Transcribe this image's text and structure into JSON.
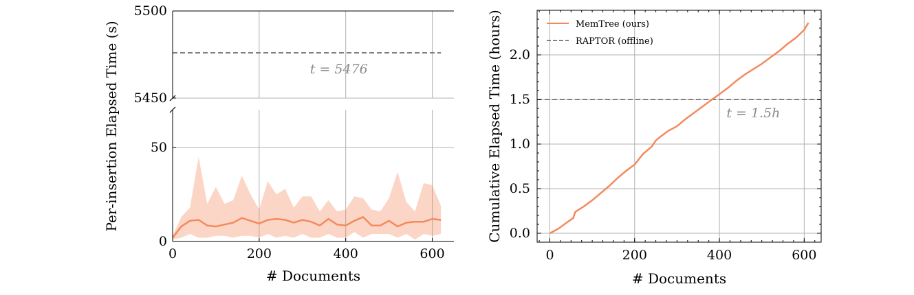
{
  "chart_data": [
    {
      "type": "line",
      "panel": "left",
      "xlabel": "# Documents",
      "ylabel": "Per-insertion Elapsed Time (s)",
      "xlim": [
        0,
        650
      ],
      "ylim_upper": [
        5450,
        5500
      ],
      "ylim_lower": [
        0,
        70
      ],
      "xticks": [
        "0",
        "200",
        "400",
        "600"
      ],
      "yticks_upper": [
        "5450",
        "5500"
      ],
      "yticks_lower": [
        "0",
        "50"
      ],
      "grid": true,
      "broken_axis": true,
      "reference_line": {
        "value": 5476,
        "label": "t = 5476",
        "style": "dashed",
        "color": "#808080"
      },
      "series": [
        {
          "color": "#f4895c",
          "x": [
            0,
            20,
            40,
            60,
            80,
            100,
            120,
            140,
            160,
            180,
            200,
            220,
            240,
            260,
            280,
            300,
            320,
            340,
            360,
            380,
            400,
            420,
            440,
            460,
            480,
            500,
            520,
            540,
            560,
            580,
            600,
            620
          ],
          "y": [
            2,
            8,
            11,
            11.5,
            8.5,
            8,
            9,
            10,
            12.5,
            11,
            9.5,
            11.5,
            12,
            11.5,
            10,
            11.5,
            10.5,
            8.5,
            12,
            9,
            8.5,
            11,
            13,
            8.5,
            8.5,
            11,
            8,
            10,
            10.5,
            10.5,
            12,
            11.5
          ],
          "upper": [
            3,
            13,
            18,
            45,
            20,
            29,
            20,
            22,
            35,
            25,
            17,
            32,
            25,
            28,
            18,
            24,
            24,
            16,
            22,
            16,
            17,
            24,
            23,
            17,
            16,
            23,
            37,
            21,
            16,
            31,
            30,
            19
          ],
          "lower": [
            1,
            2,
            4,
            2,
            2,
            3,
            3,
            2,
            3,
            3,
            2,
            4,
            2,
            3,
            2,
            4,
            2,
            2,
            4,
            2,
            2,
            5,
            2,
            4,
            4,
            4,
            2,
            4,
            1,
            4,
            3,
            4
          ]
        }
      ]
    },
    {
      "type": "line",
      "panel": "right",
      "xlabel": "# Documents",
      "ylabel": "Cumulative Elapsed Time (hours)",
      "xlim": [
        -30,
        640
      ],
      "ylim": [
        -0.1,
        2.5
      ],
      "xticks": [
        "0",
        "200",
        "400",
        "600"
      ],
      "yticks": [
        "0.0",
        "0.5",
        "1.0",
        "1.5",
        "2.0"
      ],
      "grid": true,
      "legend_position": "top-left",
      "series": [
        {
          "name": "MemTree (ours)",
          "color": "#f4895c",
          "style": "solid",
          "x": [
            0,
            20,
            40,
            55,
            60,
            80,
            100,
            120,
            140,
            160,
            180,
            200,
            210,
            220,
            240,
            250,
            260,
            280,
            300,
            320,
            340,
            360,
            380,
            400,
            420,
            440,
            460,
            480,
            500,
            520,
            540,
            560,
            580,
            600,
            610
          ],
          "y": [
            0.0,
            0.05,
            0.12,
            0.17,
            0.24,
            0.3,
            0.37,
            0.45,
            0.53,
            0.62,
            0.7,
            0.77,
            0.83,
            0.89,
            0.97,
            1.04,
            1.08,
            1.15,
            1.2,
            1.28,
            1.35,
            1.42,
            1.49,
            1.56,
            1.63,
            1.71,
            1.78,
            1.84,
            1.9,
            1.97,
            2.04,
            2.12,
            2.19,
            2.28,
            2.36
          ]
        },
        {
          "name": "RAPTOR (offline)",
          "color": "#808080",
          "style": "dashed",
          "constant": 1.5,
          "label": "t = 1.5h"
        }
      ]
    }
  ]
}
